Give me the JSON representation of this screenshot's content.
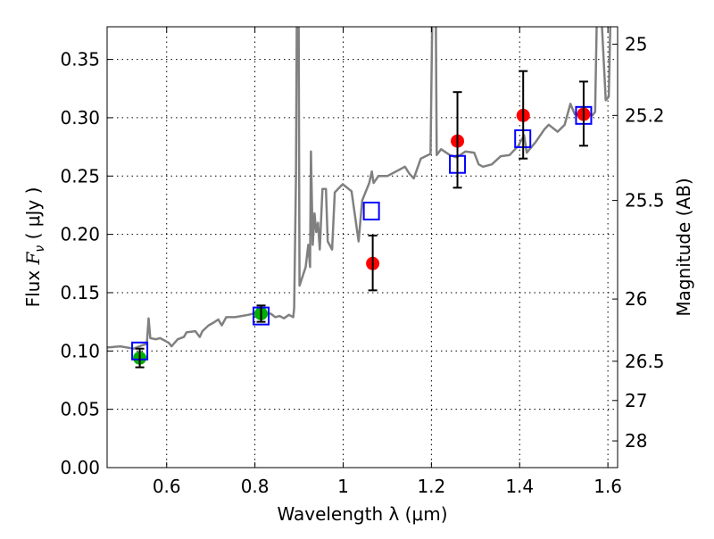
{
  "chart_data": {
    "type": "scatter",
    "xlabel": "Wavelength  λ (μm)",
    "ylabel_prefix": "Flux  ",
    "ylabel_var": "F",
    "ylabel_sub": "ν",
    "ylabel_suffix": " ( μJy )",
    "ylabel_right": "Magnitude (AB)",
    "xlim": [
      0.465,
      1.622
    ],
    "ylim": [
      0,
      0.378
    ],
    "grid": true,
    "xticks": [
      0.6,
      0.8,
      1.0,
      1.2,
      1.4,
      1.6
    ],
    "xtick_labels": [
      "0.6",
      "0.8",
      "1",
      "1.2",
      "1.4",
      "1.6"
    ],
    "yticks": [
      0,
      0.05,
      0.1,
      0.15,
      0.2,
      0.25,
      0.3,
      0.35
    ],
    "ytick_labels": [
      "0.00",
      "0.05",
      "0.10",
      "0.15",
      "0.20",
      "0.25",
      "0.30",
      "0.35"
    ],
    "right_ticks": [
      25,
      25.2,
      25.5,
      26,
      26.5,
      27,
      28
    ],
    "right_tick_labels": [
      "25",
      "25.2",
      "25.5",
      "26",
      "26.5",
      "27",
      "28"
    ],
    "ab_zeropoint": 23.9,
    "colors": {
      "spectrum": "#808080",
      "green": "#00b000",
      "red": "#ff0000",
      "model": "#0000ff",
      "err": "#000000"
    },
    "spectrum": [
      [
        0.465,
        0.103
      ],
      [
        0.495,
        0.104
      ],
      [
        0.525,
        0.102
      ],
      [
        0.545,
        0.105
      ],
      [
        0.555,
        0.106
      ],
      [
        0.559,
        0.128
      ],
      [
        0.563,
        0.111
      ],
      [
        0.575,
        0.11
      ],
      [
        0.585,
        0.111
      ],
      [
        0.605,
        0.107
      ],
      [
        0.611,
        0.104
      ],
      [
        0.625,
        0.11
      ],
      [
        0.639,
        0.112
      ],
      [
        0.645,
        0.116
      ],
      [
        0.665,
        0.117
      ],
      [
        0.675,
        0.112
      ],
      [
        0.681,
        0.117
      ],
      [
        0.695,
        0.122
      ],
      [
        0.705,
        0.124
      ],
      [
        0.717,
        0.127
      ],
      [
        0.725,
        0.122
      ],
      [
        0.735,
        0.129
      ],
      [
        0.755,
        0.129
      ],
      [
        0.785,
        0.131
      ],
      [
        0.806,
        0.133
      ],
      [
        0.826,
        0.132
      ],
      [
        0.836,
        0.132
      ],
      [
        0.846,
        0.129
      ],
      [
        0.856,
        0.13
      ],
      [
        0.866,
        0.128
      ],
      [
        0.877,
        0.131
      ],
      [
        0.887,
        0.129
      ],
      [
        0.889,
        0.137
      ],
      [
        0.893,
        0.248
      ],
      [
        0.895,
        0.39
      ],
      [
        0.899,
        0.39
      ],
      [
        0.901,
        0.156
      ],
      [
        0.915,
        0.172
      ],
      [
        0.921,
        0.191
      ],
      [
        0.925,
        0.172
      ],
      [
        0.927,
        0.271
      ],
      [
        0.931,
        0.191
      ],
      [
        0.935,
        0.218
      ],
      [
        0.939,
        0.202
      ],
      [
        0.943,
        0.21
      ],
      [
        0.947,
        0.187
      ],
      [
        0.953,
        0.239
      ],
      [
        0.961,
        0.239
      ],
      [
        0.965,
        0.194
      ],
      [
        0.975,
        0.187
      ],
      [
        0.981,
        0.236
      ],
      [
        0.999,
        0.243
      ],
      [
        1.019,
        0.237
      ],
      [
        1.035,
        0.194
      ],
      [
        1.043,
        0.229
      ],
      [
        1.059,
        0.244
      ],
      [
        1.065,
        0.254
      ],
      [
        1.069,
        0.244
      ],
      [
        1.08,
        0.25
      ],
      [
        1.1,
        0.25
      ],
      [
        1.12,
        0.254
      ],
      [
        1.14,
        0.258
      ],
      [
        1.15,
        0.252
      ],
      [
        1.16,
        0.248
      ],
      [
        1.176,
        0.265
      ],
      [
        1.198,
        0.269
      ],
      [
        1.202,
        0.39
      ],
      [
        1.21,
        0.39
      ],
      [
        1.212,
        0.268
      ],
      [
        1.222,
        0.273
      ],
      [
        1.242,
        0.268
      ],
      [
        1.257,
        0.266
      ],
      [
        1.277,
        0.271
      ],
      [
        1.297,
        0.27
      ],
      [
        1.307,
        0.26
      ],
      [
        1.317,
        0.258
      ],
      [
        1.337,
        0.26
      ],
      [
        1.357,
        0.267
      ],
      [
        1.377,
        0.268
      ],
      [
        1.397,
        0.276
      ],
      [
        1.41,
        0.285
      ],
      [
        1.416,
        0.27
      ],
      [
        1.436,
        0.279
      ],
      [
        1.456,
        0.29
      ],
      [
        1.466,
        0.294
      ],
      [
        1.486,
        0.288
      ],
      [
        1.502,
        0.294
      ],
      [
        1.515,
        0.312
      ],
      [
        1.525,
        0.303
      ],
      [
        1.545,
        0.303
      ],
      [
        1.565,
        0.302
      ],
      [
        1.571,
        0.305
      ],
      [
        1.575,
        0.39
      ],
      [
        1.585,
        0.39
      ],
      [
        1.595,
        0.315
      ],
      [
        1.602,
        0.318
      ],
      [
        1.606,
        0.39
      ],
      [
        1.622,
        0.39
      ]
    ],
    "series": [
      {
        "name": "photometry-green",
        "marker": "circle",
        "color": "green",
        "points": [
          {
            "x": 0.539,
            "y": 0.094,
            "err": 0.008
          },
          {
            "x": 0.814,
            "y": 0.132,
            "err": 0.007
          }
        ]
      },
      {
        "name": "photometry-red",
        "marker": "circle",
        "color": "red",
        "points": [
          {
            "x": 1.067,
            "y": 0.175,
            "err_lo": 0.023,
            "err_hi": 0.024
          },
          {
            "x": 1.259,
            "y": 0.28,
            "err_lo": 0.04,
            "err_hi": 0.042
          },
          {
            "x": 1.408,
            "y": 0.302,
            "err_lo": 0.037,
            "err_hi": 0.038
          },
          {
            "x": 1.545,
            "y": 0.303,
            "err_lo": 0.027,
            "err_hi": 0.028
          }
        ]
      },
      {
        "name": "model-photometry",
        "marker": "square",
        "color": "model",
        "points": [
          {
            "x": 0.539,
            "y": 0.1
          },
          {
            "x": 0.814,
            "y": 0.13
          },
          {
            "x": 1.064,
            "y": 0.22
          },
          {
            "x": 1.259,
            "y": 0.26
          },
          {
            "x": 1.407,
            "y": 0.282
          },
          {
            "x": 1.545,
            "y": 0.302
          }
        ]
      }
    ]
  }
}
